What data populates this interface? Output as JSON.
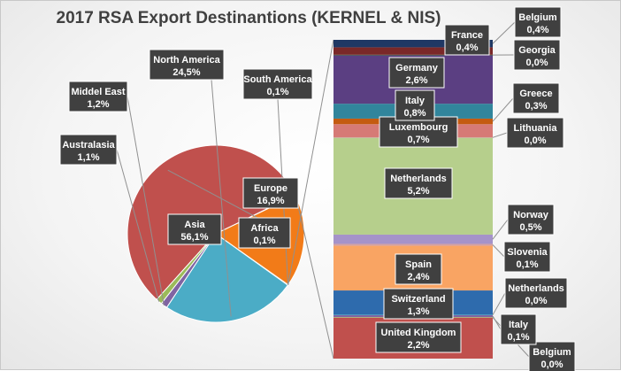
{
  "chart_data": [
    {
      "type": "pie",
      "title": "2017 RSA Export Destinantions (KERNEL & NIS)",
      "categories": [
        "Asia",
        "Africa",
        "Europe",
        "South America",
        "North America",
        "Middel East",
        "Australasia"
      ],
      "values": [
        "56,1%",
        "0,1%",
        "16,9%",
        "0,1%",
        "24,5%",
        "1,2%",
        "1,1%"
      ],
      "numeric_values": [
        56.1,
        0.1,
        16.9,
        0.1,
        24.5,
        1.2,
        1.1
      ],
      "colors": [
        "#c0504d",
        "#9bbb59",
        "#f27b18",
        "#4f81bd",
        "#4bacc6",
        "#8064a2",
        "#9bbb59"
      ],
      "legend": "none"
    },
    {
      "type": "bar",
      "stacked": true,
      "parent_category": "Europe",
      "categories": [
        "United Kingdom",
        "Belgium",
        "Italy",
        "Netherlands",
        "Switzerland",
        "Spain",
        "Slovenia",
        "Norway",
        "Netherlands",
        "Lithuania",
        "Luxembourg",
        "Greece",
        "Italy",
        "Germany",
        "Georgia",
        "France",
        "Belgium"
      ],
      "values": [
        "2,2%",
        "0,0%",
        "0,1%",
        "0,0%",
        "1,3%",
        "2,4%",
        "0,1%",
        "0,5%",
        "5,2%",
        "0,0%",
        "0,7%",
        "0,3%",
        "0,8%",
        "2,6%",
        "0,0%",
        "0,4%",
        "0,4%"
      ],
      "numeric_values": [
        2.2,
        0.03,
        0.1,
        0.03,
        1.3,
        2.4,
        0.1,
        0.5,
        5.2,
        0.03,
        0.7,
        0.3,
        0.8,
        2.6,
        0.03,
        0.4,
        0.4
      ],
      "colors": [
        "#c0504d",
        "#9bbb59",
        "#8064a2",
        "#4bacc6",
        "#2e6bad",
        "#f9a463",
        "#d4a0a0",
        "#a593c9",
        "#b6cf8c",
        "#d4a0a0",
        "#d67a76",
        "#c45b10",
        "#31859c",
        "#5b3f82",
        "#3a6d2c",
        "#7a2828",
        "#1f3864"
      ],
      "legend": "none"
    }
  ]
}
